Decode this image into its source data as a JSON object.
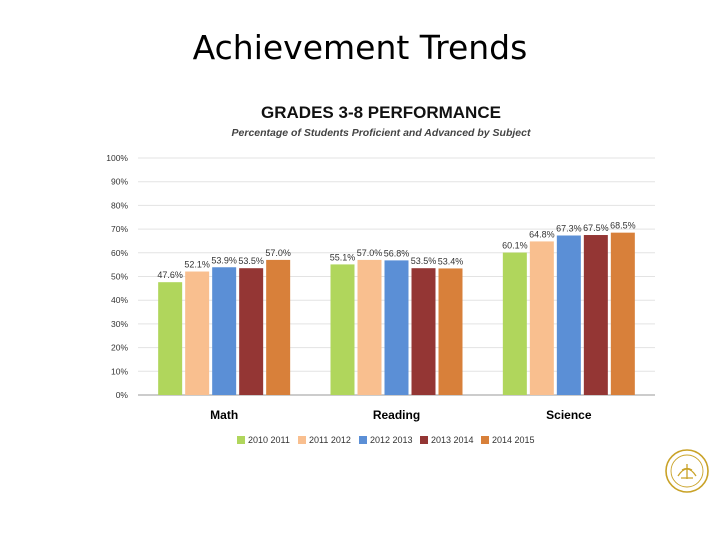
{
  "slide": {
    "title": "Achievement Trends"
  },
  "chart_data": {
    "type": "bar",
    "title": "GRADES 3-8 PERFORMANCE",
    "subtitle": "Percentage of Students Proficient and Advanced by Subject",
    "categories": [
      "Math",
      "Reading",
      "Science"
    ],
    "series": [
      {
        "name": "2010 2011",
        "color": "#b0d65c",
        "values": [
          47.6,
          55.1,
          60.1
        ],
        "labels": [
          "47.6%",
          "55.1%",
          "60.1%"
        ]
      },
      {
        "name": "2011 2012",
        "color": "#f9bf8f",
        "values": [
          52.1,
          57.0,
          64.8
        ],
        "labels": [
          "52.1%",
          "57.0%",
          "64.8%"
        ]
      },
      {
        "name": "2012 2013",
        "color": "#5b8fd6",
        "values": [
          53.9,
          56.8,
          67.3
        ],
        "labels": [
          "53.9%",
          "56.8%",
          "67.3%"
        ]
      },
      {
        "name": "2013 2014",
        "color": "#943634",
        "values": [
          53.5,
          53.5,
          67.5
        ],
        "labels": [
          "53.5%",
          "53.5%",
          "67.5%"
        ]
      },
      {
        "name": "2014 2015",
        "color": "#d8803a",
        "values": [
          57.0,
          53.4,
          68.5
        ],
        "labels": [
          "57.0%",
          "53.4%",
          "68.5%"
        ]
      }
    ],
    "ylim": [
      0,
      100
    ],
    "yticks": [
      "0%",
      "10%",
      "20%",
      "30%",
      "40%",
      "50%",
      "60%",
      "70%",
      "80%",
      "90%",
      "100%"
    ],
    "grid": true,
    "legend_position": "bottom"
  },
  "seal": {
    "icon": "school-seal-icon",
    "color": "#c9a227"
  }
}
